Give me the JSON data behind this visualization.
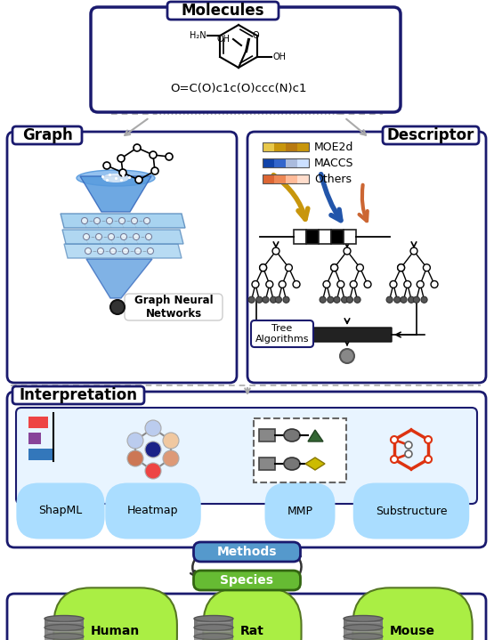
{
  "title": "Molecules",
  "smiles": "O=C(O)c1c(O)ccc(N)c1",
  "graph_label": "Graph",
  "descriptor_label": "Descriptor",
  "interpretation_label": "Interpretation",
  "methods_label": "Methods",
  "species_label": "Species",
  "gnn_label": "Graph Neural\nNetworks",
  "tree_label": "Tree\nAlgorithms",
  "moe2d_label": "MOE2d",
  "maccs_label": "MACCS",
  "others_label": "Others",
  "shapml_label": "ShapML",
  "heatmap_label": "Heatmap",
  "mmp_label": "MMP",
  "substructure_label": "Substructure",
  "human_label": "Human",
  "rat_label": "Rat",
  "mouse_label": "Mouse",
  "dark_navy": "#1a1a6e",
  "methods_fill": "#5599cc",
  "species_fill": "#66bb33",
  "label_bg": "#aaddff",
  "gold_color": "#c8960c",
  "blue_color": "#2255aa",
  "orange_color": "#cc6633",
  "db_color": "#777777",
  "subst_ring_color": "#dd3311",
  "mmp_gray": "#666666",
  "mmp_green": "#336633",
  "mmp_yellow": "#ccbb00",
  "shap_red": "#ee4444",
  "shap_purple": "#884499",
  "shap_blue": "#3377bb"
}
